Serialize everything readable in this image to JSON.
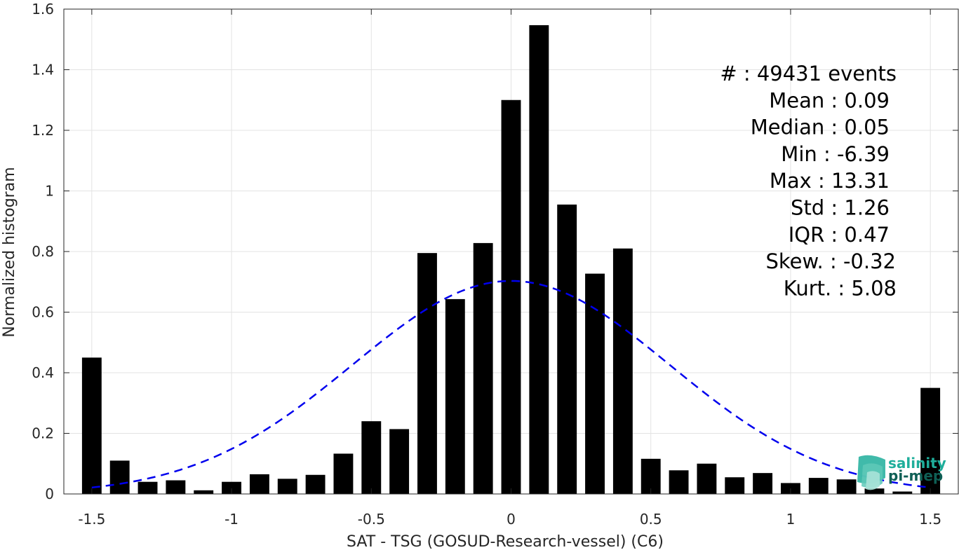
{
  "chart_data": {
    "type": "bar",
    "xlabel": "SAT - TSG (GOSUD-Research-vessel) (C6)",
    "ylabel": "Normalized histogram",
    "xlim": [
      -1.6,
      1.6
    ],
    "ylim": [
      0,
      1.6
    ],
    "grid": true,
    "bar_width": 0.07,
    "x_ticks": [
      -1.5,
      -1,
      -0.5,
      0,
      0.5,
      1,
      1.5
    ],
    "x_tick_labels": [
      "-1.5",
      "-1",
      "-0.5",
      "0",
      "0.5",
      "1",
      "1.5"
    ],
    "y_ticks": [
      0,
      0.2,
      0.4,
      0.6,
      0.8,
      1,
      1.2,
      1.4,
      1.6
    ],
    "y_tick_labels": [
      "0",
      "0.2",
      "0.4",
      "0.6",
      "0.8",
      "1",
      "1.2",
      "1.4",
      "1.6"
    ],
    "bars": {
      "x": [
        -1.5,
        -1.4,
        -1.3,
        -1.2,
        -1.1,
        -1.0,
        -0.9,
        -0.8,
        -0.7,
        -0.6,
        -0.5,
        -0.4,
        -0.3,
        -0.2,
        -0.1,
        0.0,
        0.1,
        0.2,
        0.3,
        0.4,
        0.5,
        0.6,
        0.7,
        0.8,
        0.9,
        1.0,
        1.1,
        1.2,
        1.3,
        1.4,
        1.5
      ],
      "values": [
        0.45,
        0.11,
        0.04,
        0.045,
        0.012,
        0.04,
        0.065,
        0.05,
        0.063,
        0.133,
        0.24,
        0.214,
        0.795,
        0.643,
        0.828,
        1.3,
        1.547,
        0.955,
        0.727,
        0.81,
        0.116,
        0.078,
        0.1,
        0.055,
        0.069,
        0.036,
        0.053,
        0.048,
        0.018,
        0.008,
        0.35
      ],
      "color": "#000000"
    },
    "fit_curve": {
      "style": "dashed",
      "color": "#0000ee",
      "mean": 0.0,
      "std": 0.567,
      "peak": 0.703,
      "x_range": [
        -1.5,
        1.5
      ]
    },
    "annotations": [
      {
        "label": "#  : 49431 events"
      },
      {
        "label": "Mean : 0.09"
      },
      {
        "label": "Median : 0.05"
      },
      {
        "label": "Min : -6.39"
      },
      {
        "label": "Max : 13.31"
      },
      {
        "label": "Std : 1.26"
      },
      {
        "label": "IQR : 0.47"
      },
      {
        "label": "Skew. : -0.32"
      },
      {
        "label": "Kurt. : 5.08"
      }
    ]
  },
  "logo": {
    "line1": "salinity",
    "line2": "pi-mep",
    "colors": {
      "primary": "#1fae9b",
      "dark": "#0f5f55"
    }
  }
}
